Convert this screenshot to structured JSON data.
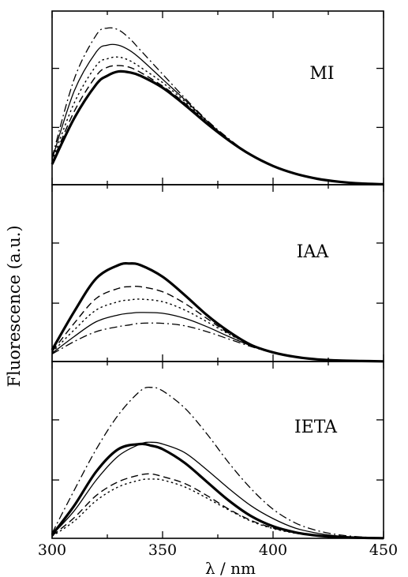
{
  "chart_data": {
    "type": "line",
    "xlabel": "λ / nm",
    "ylabel": "Fluorescence (a.u.)",
    "xlim": [
      300,
      450
    ],
    "xticks": [
      300,
      350,
      400,
      450
    ],
    "x_tick_labels": [
      "300",
      "350",
      "400",
      "450"
    ],
    "x_minor_ticks": [
      325,
      375,
      425
    ],
    "y_ticks_unlabeled": [
      0.33,
      0.67
    ],
    "ylim": [
      0,
      1
    ],
    "grid": false,
    "legend": "none",
    "line_styles": [
      "thick-solid",
      "long-dash",
      "dotted",
      "solid",
      "dash-dot"
    ],
    "panels": [
      {
        "label": "MI",
        "x": [
          300,
          310,
          320,
          325,
          330,
          335,
          340,
          350,
          360,
          370,
          380,
          390,
          400,
          410,
          420,
          430,
          440,
          450
        ],
        "series": [
          {
            "style": "thick-solid",
            "values": [
              0.12,
              0.39,
              0.59,
              0.64,
              0.665,
              0.66,
              0.64,
              0.57,
              0.47,
              0.36,
              0.26,
              0.175,
              0.11,
              0.065,
              0.035,
              0.017,
              0.007,
              0.003
            ]
          },
          {
            "style": "long-dash",
            "values": [
              0.13,
              0.43,
              0.64,
              0.69,
              0.7,
              0.69,
              0.66,
              0.58,
              0.48,
              0.365,
              0.26,
              0.175,
              0.11,
              0.065,
              0.035,
              0.017,
              0.007,
              0.003
            ]
          },
          {
            "style": "dotted",
            "values": [
              0.14,
              0.48,
              0.7,
              0.74,
              0.75,
              0.73,
              0.69,
              0.6,
              0.49,
              0.37,
              0.265,
              0.175,
              0.11,
              0.065,
              0.035,
              0.017,
              0.007,
              0.003
            ]
          },
          {
            "style": "solid",
            "values": [
              0.15,
              0.55,
              0.78,
              0.82,
              0.82,
              0.79,
              0.74,
              0.62,
              0.5,
              0.375,
              0.265,
              0.175,
              0.11,
              0.065,
              0.035,
              0.017,
              0.007,
              0.003
            ]
          },
          {
            "style": "dash-dot",
            "values": [
              0.16,
              0.62,
              0.88,
              0.92,
              0.91,
              0.86,
              0.79,
              0.65,
              0.51,
              0.38,
              0.27,
              0.175,
              0.11,
              0.065,
              0.035,
              0.017,
              0.007,
              0.003
            ]
          }
        ]
      },
      {
        "label": "IAA",
        "x": [
          300,
          310,
          320,
          330,
          335,
          340,
          350,
          360,
          370,
          380,
          390,
          400,
          410,
          420,
          430,
          440,
          450
        ],
        "series": [
          {
            "style": "thick-solid",
            "values": [
              0.07,
              0.3,
              0.5,
              0.58,
              0.59,
              0.58,
              0.51,
              0.4,
              0.28,
              0.18,
              0.1,
              0.055,
              0.028,
              0.013,
              0.006,
              0.003,
              0.001
            ]
          },
          {
            "style": "long-dash",
            "values": [
              0.06,
              0.23,
              0.38,
              0.44,
              0.45,
              0.45,
              0.42,
              0.35,
              0.26,
              0.17,
              0.1,
              0.055,
              0.028,
              0.013,
              0.006,
              0.003,
              0.001
            ]
          },
          {
            "style": "dotted",
            "values": [
              0.055,
              0.19,
              0.31,
              0.36,
              0.37,
              0.375,
              0.36,
              0.31,
              0.24,
              0.165,
              0.1,
              0.055,
              0.028,
              0.013,
              0.006,
              0.003,
              0.001
            ]
          },
          {
            "style": "solid",
            "values": [
              0.05,
              0.15,
              0.24,
              0.28,
              0.29,
              0.295,
              0.29,
              0.26,
              0.21,
              0.15,
              0.095,
              0.055,
              0.028,
              0.013,
              0.006,
              0.003,
              0.001
            ]
          },
          {
            "style": "dash-dot",
            "values": [
              0.045,
              0.12,
              0.18,
              0.21,
              0.22,
              0.23,
              0.23,
              0.215,
              0.18,
              0.135,
              0.09,
              0.052,
              0.027,
              0.013,
              0.006,
              0.003,
              0.001
            ]
          }
        ]
      },
      {
        "label": "IETA",
        "x": [
          300,
          310,
          320,
          330,
          340,
          345,
          350,
          360,
          370,
          380,
          390,
          400,
          410,
          420,
          430,
          440,
          450
        ],
        "series": [
          {
            "style": "thick-solid",
            "values": [
              0.02,
              0.19,
              0.39,
              0.52,
              0.55,
              0.54,
              0.52,
              0.44,
              0.33,
              0.22,
              0.13,
              0.07,
              0.035,
              0.016,
              0.007,
              0.003,
              0.001
            ]
          },
          {
            "style": "long-dash",
            "values": [
              0.015,
              0.12,
              0.25,
              0.33,
              0.37,
              0.375,
              0.36,
              0.32,
              0.25,
              0.17,
              0.105,
              0.06,
              0.032,
              0.016,
              0.007,
              0.003,
              0.001
            ]
          },
          {
            "style": "dotted",
            "values": [
              0.012,
              0.1,
              0.22,
              0.3,
              0.34,
              0.345,
              0.34,
              0.3,
              0.235,
              0.165,
              0.1,
              0.057,
              0.03,
              0.015,
              0.007,
              0.003,
              0.001
            ]
          },
          {
            "style": "solid",
            "values": [
              0.02,
              0.16,
              0.34,
              0.48,
              0.55,
              0.56,
              0.55,
              0.5,
              0.4,
              0.29,
              0.19,
              0.115,
              0.06,
              0.03,
              0.013,
              0.005,
              0.002
            ]
          },
          {
            "style": "dash-dot",
            "values": [
              0.03,
              0.28,
              0.52,
              0.72,
              0.86,
              0.88,
              0.86,
              0.76,
              0.61,
              0.44,
              0.29,
              0.17,
              0.09,
              0.045,
              0.02,
              0.008,
              0.003
            ]
          }
        ]
      }
    ]
  }
}
